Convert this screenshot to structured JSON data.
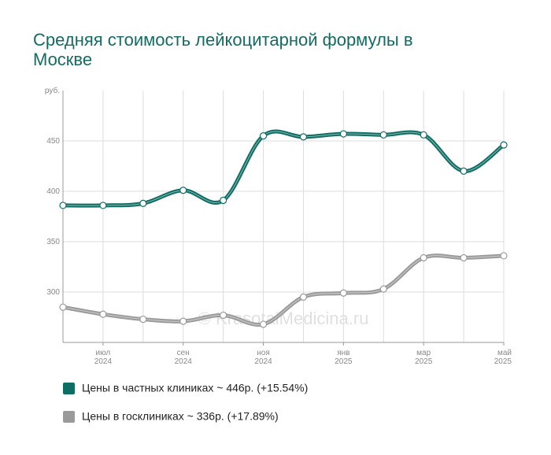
{
  "chart_data": {
    "type": "line",
    "title": "Средняя стоимость лейкоцитарной формулы в Москве",
    "y_label": "руб.",
    "watermark": "© KrasotaiMedicina.ru",
    "categories": [
      null,
      [
        "июл",
        "2024"
      ],
      null,
      [
        "сен",
        "2024"
      ],
      null,
      [
        "ноя",
        "2024"
      ],
      null,
      [
        "янв",
        "2025"
      ],
      null,
      [
        "мар",
        "2025"
      ],
      null,
      [
        "май",
        "2025"
      ]
    ],
    "series": [
      {
        "name": "Цены в частных клиниках ~ 446р. (+15.54%)",
        "color": "#0f6e64",
        "values": [
          386,
          386,
          388,
          401,
          391,
          455,
          454,
          457,
          456,
          456,
          420,
          446
        ]
      },
      {
        "name": "Цены в госклиниках ~ 336р. (+17.89%)",
        "color": "#9a9a9a",
        "values": [
          285,
          278,
          273,
          271,
          277,
          268,
          295,
          299,
          303,
          334,
          334,
          336
        ]
      }
    ],
    "ylim": [
      250,
      500
    ],
    "yticks": [
      300,
      350,
      400,
      450
    ],
    "grid": true
  }
}
